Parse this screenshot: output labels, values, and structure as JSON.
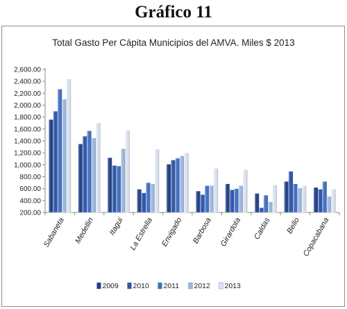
{
  "page": {
    "heading": "Gráfico 11"
  },
  "chart_data": {
    "type": "bar",
    "title": "Total Gasto Per Cápita  Municipios  del AMVA.  Miles $ 2013",
    "xlabel": "",
    "ylabel": "",
    "ylim": [
      200,
      2600
    ],
    "yticks": [
      200,
      400,
      600,
      800,
      1000,
      1200,
      1400,
      1600,
      1800,
      2000,
      2200,
      2400,
      2600
    ],
    "ytick_labels": [
      "200.00",
      "400.00",
      "600.00",
      "800.00",
      "1,000.00",
      "1,200.00",
      "1,400.00",
      "1,600.00",
      "1,800.00",
      "2,000.00",
      "2,200.00",
      "2,400.00",
      "2,600.00"
    ],
    "categories": [
      "Sabaneta",
      "Medellin",
      "Itagui",
      "La Estrella",
      "Envigado",
      "Barbosa",
      "Girardota",
      "Caldas",
      "Bello",
      "Copacabana"
    ],
    "legend_position": "bottom",
    "grid": false,
    "series": [
      {
        "name": "2009",
        "color": "#1f3f86",
        "values": [
          1760,
          1350,
          1120,
          590,
          1010,
          560,
          680,
          520,
          720,
          620
        ]
      },
      {
        "name": "2010",
        "color": "#2c54a8",
        "values": [
          1900,
          1480,
          990,
          530,
          1080,
          500,
          580,
          280,
          890,
          590
        ]
      },
      {
        "name": "2011",
        "color": "#3f6fc4",
        "values": [
          2270,
          1570,
          980,
          700,
          1110,
          650,
          600,
          490,
          680,
          720
        ]
      },
      {
        "name": "2012",
        "color": "#9fb6dc",
        "values": [
          2100,
          1450,
          1270,
          680,
          1150,
          650,
          650,
          380,
          610,
          470
        ]
      },
      {
        "name": "2013",
        "color": "#d9e2f1",
        "values": [
          2440,
          1700,
          1580,
          1260,
          1200,
          940,
          920,
          660,
          650,
          590
        ]
      }
    ]
  }
}
